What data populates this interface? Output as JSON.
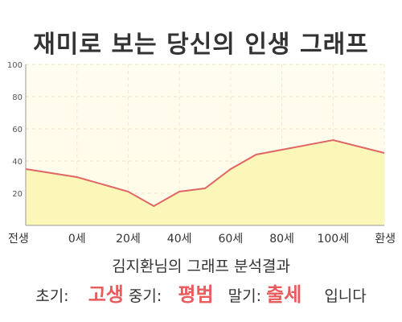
{
  "title": "재미로 보는 당신의 인생 그래프",
  "colors": {
    "line": "#e06666",
    "fill_top": "#fdfbe0",
    "fill": "#fbf7b8",
    "axis": "#999999",
    "highlight": "#e85c5c",
    "text": "#333333"
  },
  "chart_data": {
    "type": "area",
    "x_tick_labels": [
      "전생",
      "0세",
      "20세",
      "40세",
      "60세",
      "80세",
      "100세",
      "환생"
    ],
    "y_ticks": [
      20,
      40,
      60,
      80,
      100
    ],
    "ylim": [
      0,
      100
    ],
    "grid": true,
    "series": [
      {
        "values": [
          {
            "x": -20,
            "y": 35
          },
          {
            "x": 0,
            "y": 30
          },
          {
            "x": 20,
            "y": 21
          },
          {
            "x": 30,
            "y": 12
          },
          {
            "x": 40,
            "y": 21
          },
          {
            "x": 50,
            "y": 23
          },
          {
            "x": 60,
            "y": 35
          },
          {
            "x": 70,
            "y": 44
          },
          {
            "x": 80,
            "y": 47
          },
          {
            "x": 100,
            "y": 53
          },
          {
            "x": 120,
            "y": 45
          }
        ]
      }
    ]
  },
  "summary": "김지환님의 그래프 분석결과",
  "result": {
    "early_label": "초기:",
    "early_value": "고생",
    "mid_label": "중기:",
    "mid_value": "평범",
    "late_label": "말기:",
    "late_value": "출세",
    "ending": "입니다"
  }
}
